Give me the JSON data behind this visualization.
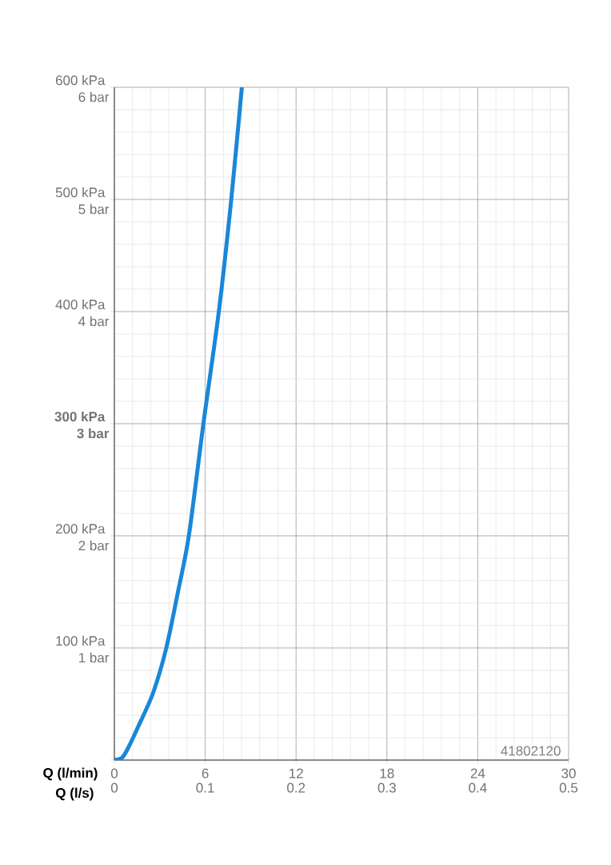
{
  "chart_data": {
    "type": "line",
    "xlabel": "Q (l/min)",
    "x2label": "Q (l/s)",
    "xlim": [
      0,
      30
    ],
    "xticks": [
      0,
      6,
      12,
      18,
      24,
      30
    ],
    "x2lim": [
      0,
      0.5
    ],
    "x2ticks": [
      0,
      0.1,
      0.2,
      0.3,
      0.4,
      0.5
    ],
    "ylim": [
      0,
      600
    ],
    "yticks": [
      {
        "value": 0,
        "label": null
      },
      {
        "value": 100,
        "label": "100 kPa"
      },
      {
        "value": 200,
        "label": "200 kPa"
      },
      {
        "value": 300,
        "label": "**300 kPa**"
      },
      {
        "value": 400,
        "label": "400 kPa"
      },
      {
        "value": 500,
        "label": "500 kPa"
      },
      {
        "value": 600,
        "label": "600 kPa"
      }
    ],
    "y2lim": [
      0,
      6
    ],
    "y2ticks": [
      {
        "value": 0,
        "label": null
      },
      {
        "value": 1,
        "label": "1 bar"
      },
      {
        "value": 2,
        "label": "2 bar"
      },
      {
        "value": 3,
        "label": "**3 bar**"
      },
      {
        "value": 4,
        "label": "4 bar"
      },
      {
        "value": 5,
        "label": "5 bar"
      },
      {
        "value": 6,
        "label": "6 bar"
      }
    ],
    "grid": true,
    "line_style": "solid",
    "marker": "none",
    "series": [
      {
        "color": "#1a87d8",
        "x": [
          0,
          0.5,
          0.88,
          1.58,
          2.56,
          3.43,
          4.2,
          4.92,
          5.88,
          6.9,
          7.72,
          8.42
        ],
        "values": [
          0,
          2,
          10,
          30,
          60,
          100,
          150,
          200,
          300,
          400,
          500,
          600
        ]
      }
    ],
    "annotations": [
      "41802120"
    ]
  }
}
